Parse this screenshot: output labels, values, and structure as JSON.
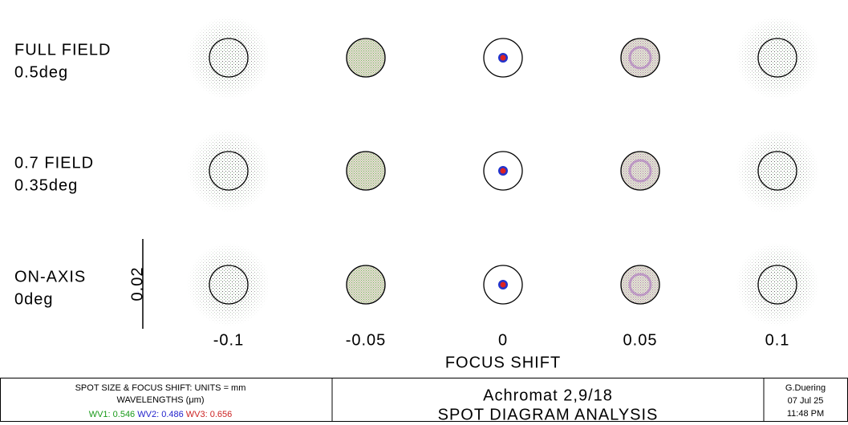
{
  "rows": [
    {
      "label": "FULL FIELD",
      "angle": "0.5deg"
    },
    {
      "label": "0.7 FIELD",
      "angle": "0.35deg"
    },
    {
      "label": "ON-AXIS",
      "angle": "0deg"
    }
  ],
  "columns": [
    "-0.1",
    "-0.05",
    "0",
    "0.05",
    "0.1"
  ],
  "axis_label": "FOCUS SHIFT",
  "scale_label": "0.02",
  "footer": {
    "units": "SPOT SIZE & FOCUS SHIFT: UNITS = mm",
    "wavelengths_label": "WAVELENGTHS (μm)",
    "wavelengths": [
      "WV1: 0.546",
      "WV2: 0.486",
      "WV3: 0.656"
    ],
    "title": "Achromat 2,9/18",
    "subtitle": "SPOT DIAGRAM ANALYSIS",
    "author": "G.Duering",
    "date": "07 Jul 25",
    "time": "11:48 PM"
  }
}
